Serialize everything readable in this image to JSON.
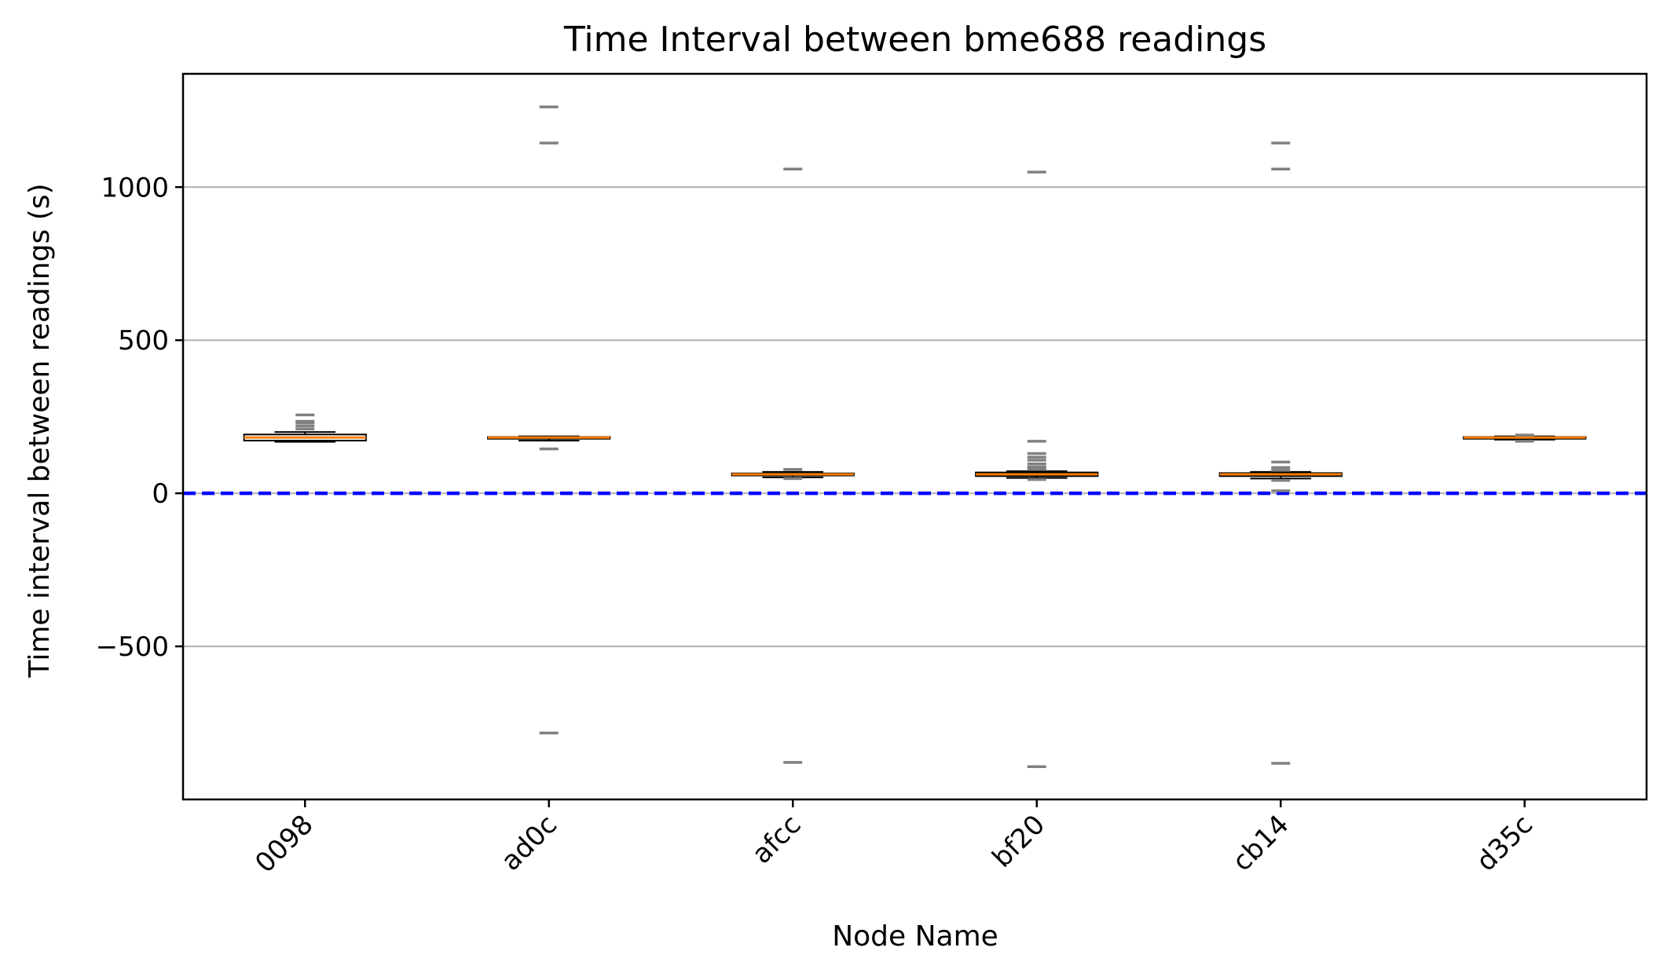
{
  "chart_data": {
    "type": "box",
    "title": "Time Interval between bme688 readings",
    "xlabel": "Node Name",
    "ylabel": "Time interval between readings (s)",
    "categories": [
      "0098",
      "ad0c",
      "afcc",
      "bf20",
      "cb14",
      "d35c"
    ],
    "ylim": [
      -1000,
      1370
    ],
    "yticks": [
      -500,
      0,
      500,
      1000
    ],
    "ytick_labels": [
      "−500",
      "0",
      "500",
      "1000"
    ],
    "grid": "y",
    "reference_line": {
      "y": 0,
      "style": "dashed",
      "color": "#0000ff"
    },
    "boxes": [
      {
        "category": "0098",
        "whisker_low": 168,
        "q1": 172,
        "median": 182,
        "q3": 192,
        "whisker_high": 200,
        "outliers": [
          210,
          220,
          230,
          235,
          256
        ]
      },
      {
        "category": "ad0c",
        "whisker_low": 172,
        "q1": 178,
        "median": 182,
        "q3": 184,
        "whisker_high": 186,
        "outliers": [
          1262,
          1144,
          145,
          -783
        ]
      },
      {
        "category": "afcc",
        "whisker_low": 52,
        "q1": 58,
        "median": 62,
        "q3": 65,
        "whisker_high": 70,
        "outliers": [
          1059,
          78,
          48,
          -879
        ]
      },
      {
        "category": "bf20",
        "whisker_low": 50,
        "q1": 56,
        "median": 62,
        "q3": 68,
        "whisker_high": 72,
        "outliers": [
          1049,
          170,
          130,
          118,
          108,
          96,
          86,
          78,
          45,
          -893
        ]
      },
      {
        "category": "cb14",
        "whisker_low": 48,
        "q1": 56,
        "median": 62,
        "q3": 66,
        "whisker_high": 70,
        "outliers": [
          1144,
          1059,
          102,
          84,
          75,
          42,
          8,
          -882
        ]
      },
      {
        "category": "d35c",
        "whisker_low": 175,
        "q1": 178,
        "median": 182,
        "q3": 184,
        "whisker_high": 186,
        "outliers": [
          190,
          170
        ]
      }
    ],
    "colors": {
      "median": "#ff7f0e",
      "box_edge": "#000000",
      "outlier": "#808080",
      "grid": "#b0b0b0",
      "reference": "#0000ff"
    }
  }
}
